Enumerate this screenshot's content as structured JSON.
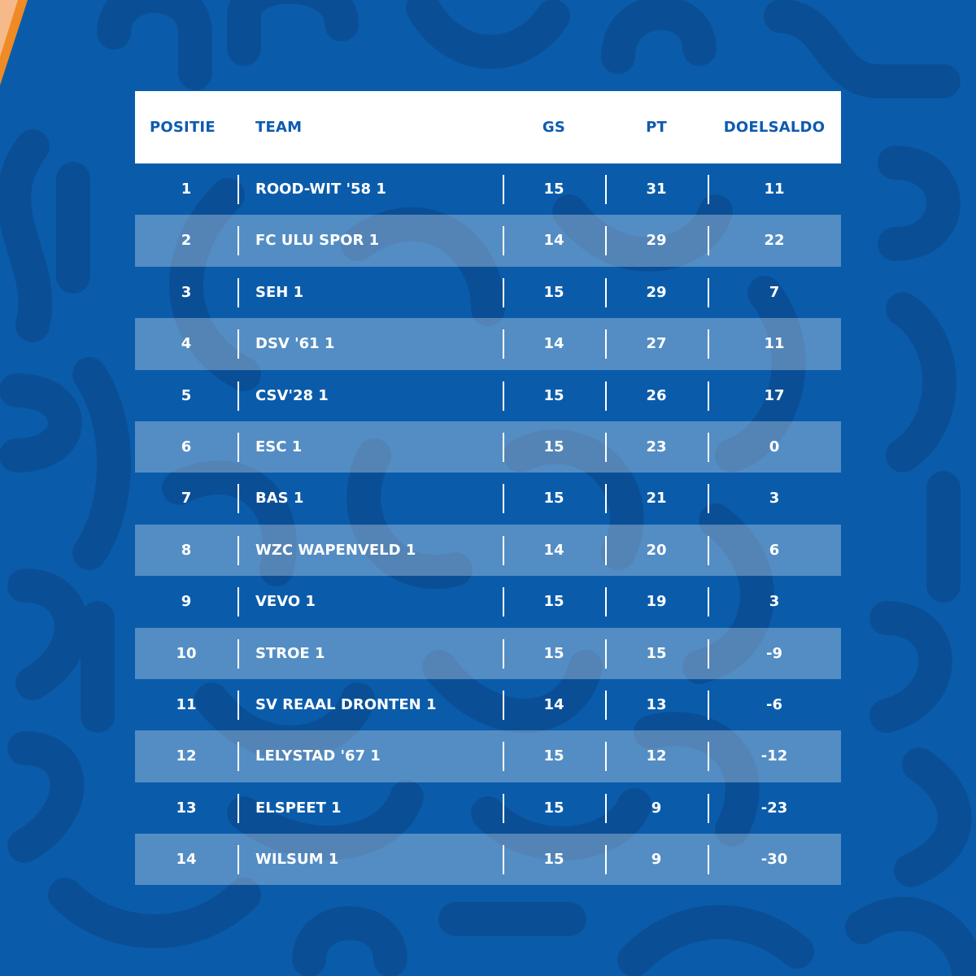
{
  "colors": {
    "background": "#0a5cab",
    "pattern": "#0a4f96",
    "header_bg": "#ffffff",
    "header_text": "#0d5bb0",
    "row_text": "#ffffff",
    "shaded_row": "rgba(255,255,255,0.30)",
    "accent_orange": "#f08a24"
  },
  "logo_icon": "club-logo-corner",
  "table": {
    "headers": {
      "positie": "POSITIE",
      "team": "TEAM",
      "gs": "GS",
      "pt": "PT",
      "doelsaldo": "DOELSALDO"
    },
    "rows": [
      {
        "pos": "1",
        "team": "ROOD-WIT '58 1",
        "gs": "15",
        "pt": "31",
        "saldo": "11"
      },
      {
        "pos": "2",
        "team": "FC ULU SPOR 1",
        "gs": "14",
        "pt": "29",
        "saldo": "22"
      },
      {
        "pos": "3",
        "team": "SEH 1",
        "gs": "15",
        "pt": "29",
        "saldo": "7"
      },
      {
        "pos": "4",
        "team": "DSV '61 1",
        "gs": "14",
        "pt": "27",
        "saldo": "11"
      },
      {
        "pos": "5",
        "team": "CSV'28 1",
        "gs": "15",
        "pt": "26",
        "saldo": "17"
      },
      {
        "pos": "6",
        "team": "ESC 1",
        "gs": "15",
        "pt": "23",
        "saldo": "0"
      },
      {
        "pos": "7",
        "team": "BAS 1",
        "gs": "15",
        "pt": "21",
        "saldo": "3"
      },
      {
        "pos": "8",
        "team": "WZC WAPENVELD 1",
        "gs": "14",
        "pt": "20",
        "saldo": "6"
      },
      {
        "pos": "9",
        "team": "VEVO 1",
        "gs": "15",
        "pt": "19",
        "saldo": "3"
      },
      {
        "pos": "10",
        "team": "STROE 1",
        "gs": "15",
        "pt": "15",
        "saldo": "-9"
      },
      {
        "pos": "11",
        "team": "SV REAAL DRONTEN 1",
        "gs": "14",
        "pt": "13",
        "saldo": "-6"
      },
      {
        "pos": "12",
        "team": "LELYSTAD '67 1",
        "gs": "15",
        "pt": "12",
        "saldo": "-12"
      },
      {
        "pos": "13",
        "team": "ELSPEET 1",
        "gs": "15",
        "pt": "9",
        "saldo": "-23"
      },
      {
        "pos": "14",
        "team": "WILSUM 1",
        "gs": "15",
        "pt": "9",
        "saldo": "-30"
      }
    ]
  }
}
